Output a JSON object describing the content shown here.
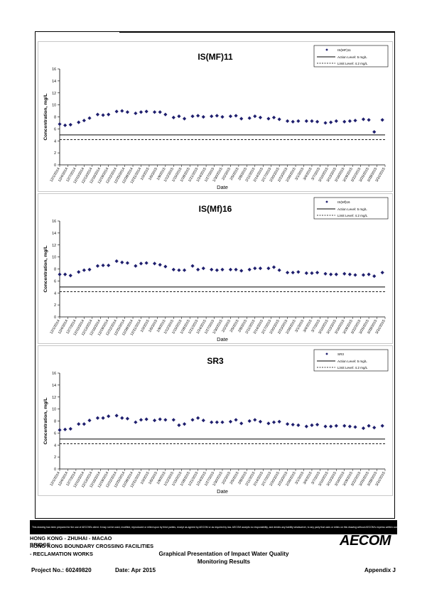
{
  "footer": {
    "disclaimer": "This drawing has been prepared for the use of AECOM's client. It may not be used, modified, reproduced or relied upon by third parties, except as agreed by AECOM or as required by law. AECOM accepts no responsibility, and denies any liability whatsoever, to any party that uses or relies on this drawing without AECOM's express written consent.",
    "line1": "HONG KONG - ZHUHAI - MACAO BRIDGE",
    "line2": "HONG KONG BOUNDARY CROSSING FACILITIES",
    "line3": "- RECLAMATION WORKS",
    "subtitle_line1": "Graphical Presentation of Impact Water Quality",
    "subtitle_line2": "Monitoring Results",
    "project_no": "Project No.: 60249820",
    "date": "Date: Apr 2015",
    "appendix": "Appendix J",
    "logo": "AECOM"
  },
  "colors": {
    "marker": "#1f1f6e",
    "axis": "#000000",
    "panel_border": "#c8c8c8"
  },
  "chart_data": [
    {
      "type": "scatter",
      "title": "IS(MF)11",
      "xlabel": "Date",
      "ylabel": "Concentration, mg/L",
      "ylim": [
        0,
        16
      ],
      "yticks": [
        0,
        2,
        4,
        6,
        8,
        10,
        12,
        14,
        16
      ],
      "x_tick_labels": [
        "12/1/2014",
        "12/4/2014",
        "12/7/2014",
        "12/10/2014",
        "12/13/2014",
        "12/16/2014",
        "12/19/2014",
        "12/22/2014",
        "12/25/2014",
        "12/28/2014",
        "12/31/2014",
        "1/3/2015",
        "1/6/2015",
        "1/9/2015",
        "1/12/2015",
        "1/15/2015",
        "1/18/2015",
        "1/21/2015",
        "1/24/2015",
        "1/27/2015",
        "1/30/2015",
        "2/2/2015",
        "2/5/2015",
        "2/8/2015",
        "2/11/2015",
        "2/14/2015",
        "2/17/2015",
        "2/20/2015",
        "2/23/2015",
        "2/26/2015",
        "3/1/2015",
        "3/4/2015",
        "3/7/2015",
        "3/10/2015",
        "3/13/2015",
        "3/16/2015",
        "3/19/2015",
        "3/22/2015",
        "3/25/2015",
        "3/28/2015",
        "3/31/2015"
      ],
      "legend": [
        "IS(MF)11",
        "Action Level: 5 mg/L",
        "Limit Level: 4.2 mg/L"
      ],
      "legend_position": "top-right",
      "action_level": 5,
      "limit_level": 4.2,
      "series": [
        {
          "name": "IS(MF)11",
          "x": [
            "12/1/2014",
            "12/3/2014",
            "12/5/2014",
            "12/8/2014",
            "12/10/2014",
            "12/12/2014",
            "12/15/2014",
            "12/17/2014",
            "12/19/2014",
            "12/22/2014",
            "12/24/2014",
            "12/26/2014",
            "12/29/2014",
            "12/31/2014",
            "1/2/2015",
            "1/5/2015",
            "1/7/2015",
            "1/9/2015",
            "1/12/2015",
            "1/14/2015",
            "1/16/2015",
            "1/19/2015",
            "1/21/2015",
            "1/23/2015",
            "1/26/2015",
            "1/28/2015",
            "1/30/2015",
            "2/2/2015",
            "2/4/2015",
            "2/6/2015",
            "2/9/2015",
            "2/11/2015",
            "2/13/2015",
            "2/16/2015",
            "2/18/2015",
            "2/20/2015",
            "2/23/2015",
            "2/25/2015",
            "2/27/2015",
            "3/2/2015",
            "3/4/2015",
            "3/6/2015",
            "3/9/2015",
            "3/11/2015",
            "3/13/2015",
            "3/16/2015",
            "3/18/2015",
            "3/20/2015",
            "3/23/2015",
            "3/25/2015",
            "3/27/2015",
            "3/30/2015"
          ],
          "y": [
            6.8,
            6.6,
            6.7,
            7.1,
            7.4,
            7.8,
            8.4,
            8.3,
            8.4,
            8.9,
            9.0,
            8.8,
            8.6,
            8.8,
            8.9,
            8.8,
            8.8,
            8.4,
            7.9,
            8.1,
            7.7,
            8.1,
            8.2,
            8.0,
            8.1,
            8.2,
            8.0,
            8.1,
            8.2,
            7.7,
            7.8,
            8.1,
            7.9,
            7.7,
            7.9,
            7.6,
            7.3,
            7.2,
            7.3,
            7.3,
            7.3,
            7.2,
            7.0,
            7.1,
            7.3,
            7.2,
            7.3,
            7.4,
            7.6,
            7.5,
            5.5,
            7.5
          ]
        }
      ]
    },
    {
      "type": "scatter",
      "title": "IS(Mf)16",
      "xlabel": "Date",
      "ylabel": "Concentration, mg/L",
      "ylim": [
        0,
        16
      ],
      "yticks": [
        0,
        2,
        4,
        6,
        8,
        10,
        12,
        14,
        16
      ],
      "x_tick_labels": [
        "12/1/2014",
        "12/4/2014",
        "12/7/2014",
        "12/10/2014",
        "12/13/2014",
        "12/16/2014",
        "12/19/2014",
        "12/22/2014",
        "12/25/2014",
        "12/28/2014",
        "12/31/2014",
        "1/3/2015",
        "1/6/2015",
        "1/9/2015",
        "1/12/2015",
        "1/15/2015",
        "1/18/2015",
        "1/21/2015",
        "1/24/2015",
        "1/27/2015",
        "1/30/2015",
        "2/2/2015",
        "2/5/2015",
        "2/8/2015",
        "2/11/2015",
        "2/14/2015",
        "2/17/2015",
        "2/20/2015",
        "2/23/2015",
        "2/26/2015",
        "3/1/2015",
        "3/4/2015",
        "3/7/2015",
        "3/10/2015",
        "3/13/2015",
        "3/16/2015",
        "3/19/2015",
        "3/22/2015",
        "3/25/2015",
        "3/28/2015",
        "3/31/2015"
      ],
      "legend": [
        "IS(Mf)16",
        "Action Level: 5 mg/L",
        "Limit Level: 4.2 mg/L"
      ],
      "legend_position": "top-right",
      "action_level": 5,
      "limit_level": 4.2,
      "series": [
        {
          "name": "IS(Mf)16",
          "x": [
            "12/1/2014",
            "12/3/2014",
            "12/5/2014",
            "12/8/2014",
            "12/10/2014",
            "12/12/2014",
            "12/15/2014",
            "12/17/2014",
            "12/19/2014",
            "12/22/2014",
            "12/24/2014",
            "12/26/2014",
            "12/29/2014",
            "12/31/2014",
            "1/2/2015",
            "1/5/2015",
            "1/7/2015",
            "1/9/2015",
            "1/12/2015",
            "1/14/2015",
            "1/16/2015",
            "1/19/2015",
            "1/21/2015",
            "1/23/2015",
            "1/26/2015",
            "1/28/2015",
            "1/30/2015",
            "2/2/2015",
            "2/4/2015",
            "2/6/2015",
            "2/9/2015",
            "2/11/2015",
            "2/13/2015",
            "2/16/2015",
            "2/18/2015",
            "2/20/2015",
            "2/23/2015",
            "2/25/2015",
            "2/27/2015",
            "3/2/2015",
            "3/4/2015",
            "3/6/2015",
            "3/9/2015",
            "3/11/2015",
            "3/13/2015",
            "3/16/2015",
            "3/18/2015",
            "3/20/2015",
            "3/23/2015",
            "3/25/2015",
            "3/27/2015",
            "3/30/2015"
          ],
          "y": [
            7.1,
            7.1,
            6.9,
            7.5,
            7.8,
            7.9,
            8.5,
            8.6,
            8.6,
            9.3,
            9.1,
            9.0,
            8.5,
            8.9,
            9.0,
            8.9,
            8.7,
            8.4,
            7.9,
            7.8,
            7.8,
            8.5,
            7.9,
            8.1,
            7.9,
            7.8,
            7.9,
            7.9,
            7.9,
            7.7,
            7.9,
            8.1,
            8.1,
            8.1,
            8.3,
            7.8,
            7.4,
            7.4,
            7.5,
            7.3,
            7.3,
            7.4,
            7.2,
            7.1,
            7.1,
            7.2,
            7.1,
            7.0,
            7.0,
            7.1,
            6.8,
            7.4
          ]
        }
      ]
    },
    {
      "type": "scatter",
      "title": "SR3",
      "xlabel": "Date",
      "ylabel": "Concentration, mg/L",
      "ylim": [
        0,
        16
      ],
      "yticks": [
        0,
        2,
        4,
        6,
        8,
        10,
        12,
        14,
        16
      ],
      "x_tick_labels": [
        "12/1/2014",
        "12/4/2014",
        "12/7/2014",
        "12/10/2014",
        "12/13/2014",
        "12/16/2014",
        "12/19/2014",
        "12/22/2014",
        "12/25/2014",
        "12/28/2014",
        "12/31/2014",
        "1/3/2015",
        "1/6/2015",
        "1/9/2015",
        "1/12/2015",
        "1/15/2015",
        "1/18/2015",
        "1/21/2015",
        "1/24/2015",
        "1/27/2015",
        "1/30/2015",
        "2/2/2015",
        "2/5/2015",
        "2/8/2015",
        "2/11/2015",
        "2/14/2015",
        "2/17/2015",
        "2/20/2015",
        "2/23/2015",
        "2/26/2015",
        "3/1/2015",
        "3/4/2015",
        "3/7/2015",
        "3/10/2015",
        "3/13/2015",
        "3/16/2015",
        "3/19/2015",
        "3/22/2015",
        "3/25/2015",
        "3/28/2015",
        "3/31/2015"
      ],
      "legend": [
        "SR3",
        "Action Level: 5 mg/L",
        "Limit Level: 4.2 mg/L"
      ],
      "legend_position": "top-right",
      "action_level": 5,
      "limit_level": 4.2,
      "series": [
        {
          "name": "SR3",
          "x": [
            "12/1/2014",
            "12/3/2014",
            "12/5/2014",
            "12/8/2014",
            "12/10/2014",
            "12/12/2014",
            "12/15/2014",
            "12/17/2014",
            "12/19/2014",
            "12/22/2014",
            "12/24/2014",
            "12/26/2014",
            "12/29/2014",
            "12/31/2014",
            "1/2/2015",
            "1/5/2015",
            "1/7/2015",
            "1/9/2015",
            "1/12/2015",
            "1/14/2015",
            "1/16/2015",
            "1/19/2015",
            "1/21/2015",
            "1/23/2015",
            "1/26/2015",
            "1/28/2015",
            "1/30/2015",
            "2/2/2015",
            "2/4/2015",
            "2/6/2015",
            "2/9/2015",
            "2/11/2015",
            "2/13/2015",
            "2/16/2015",
            "2/18/2015",
            "2/20/2015",
            "2/23/2015",
            "2/25/2015",
            "2/27/2015",
            "3/2/2015",
            "3/4/2015",
            "3/6/2015",
            "3/9/2015",
            "3/11/2015",
            "3/13/2015",
            "3/16/2015",
            "3/18/2015",
            "3/20/2015",
            "3/23/2015",
            "3/25/2015",
            "3/27/2015",
            "3/30/2015"
          ],
          "y": [
            6.5,
            6.6,
            6.7,
            7.5,
            7.5,
            8.1,
            8.5,
            8.5,
            8.8,
            8.9,
            8.5,
            8.4,
            7.8,
            8.2,
            8.3,
            8.1,
            8.3,
            8.2,
            8.2,
            7.3,
            7.5,
            8.2,
            8.5,
            8.1,
            7.8,
            7.8,
            7.8,
            7.9,
            8.2,
            7.6,
            8.0,
            8.2,
            7.9,
            7.6,
            7.8,
            7.9,
            7.5,
            7.4,
            7.3,
            7.1,
            7.3,
            7.4,
            7.1,
            7.1,
            7.2,
            7.2,
            7.1,
            7.0,
            6.8,
            7.2,
            6.9,
            7.2
          ]
        }
      ]
    }
  ]
}
